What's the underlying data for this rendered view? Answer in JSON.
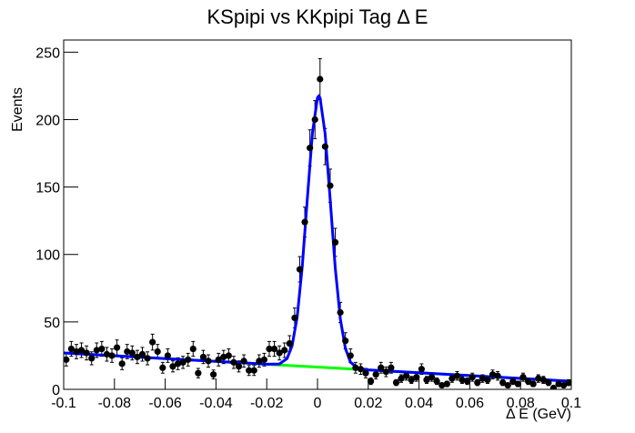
{
  "chart_data": {
    "type": "errorbar",
    "title": "KSpipi vs KKpipi Tag Δ E",
    "x_label": "Δ E (GeV)",
    "y_label": "Events",
    "xlim": [
      -0.1,
      0.1
    ],
    "ylim": [
      0,
      259
    ],
    "xticks": [
      -0.1,
      -0.08,
      -0.06,
      -0.04,
      -0.02,
      0,
      0.02,
      0.04,
      0.06,
      0.08,
      0.1
    ],
    "yticks": [
      0,
      50,
      100,
      150,
      200,
      250
    ],
    "points": {
      "color": "#000000",
      "x": [
        -0.099,
        -0.097,
        -0.095,
        -0.093,
        -0.091,
        -0.089,
        -0.087,
        -0.085,
        -0.083,
        -0.081,
        -0.079,
        -0.077,
        -0.075,
        -0.073,
        -0.071,
        -0.069,
        -0.067,
        -0.065,
        -0.063,
        -0.061,
        -0.059,
        -0.057,
        -0.055,
        -0.053,
        -0.051,
        -0.049,
        -0.047,
        -0.045,
        -0.043,
        -0.041,
        -0.039,
        -0.037,
        -0.035,
        -0.033,
        -0.031,
        -0.029,
        -0.027,
        -0.025,
        -0.023,
        -0.021,
        -0.019,
        -0.017,
        -0.015,
        -0.013,
        -0.011,
        -0.009,
        -0.007,
        -0.005,
        -0.003,
        -0.001,
        0.001,
        0.003,
        0.005,
        0.007,
        0.009,
        0.011,
        0.013,
        0.015,
        0.017,
        0.019,
        0.021,
        0.023,
        0.025,
        0.027,
        0.029,
        0.031,
        0.033,
        0.035,
        0.037,
        0.039,
        0.041,
        0.043,
        0.045,
        0.047,
        0.049,
        0.051,
        0.053,
        0.055,
        0.057,
        0.059,
        0.061,
        0.063,
        0.065,
        0.067,
        0.069,
        0.071,
        0.073,
        0.075,
        0.077,
        0.079,
        0.081,
        0.083,
        0.085,
        0.087,
        0.089,
        0.091,
        0.093,
        0.095,
        0.097,
        0.099
      ],
      "values": [
        22,
        30,
        28,
        29,
        27,
        23,
        29,
        30,
        26,
        25,
        31,
        19,
        28,
        27,
        24,
        26,
        23,
        35,
        28,
        16,
        25,
        17,
        19,
        20,
        22,
        30,
        12,
        24,
        21,
        11,
        22,
        24,
        25,
        20,
        17,
        21,
        14,
        14,
        21,
        22,
        30,
        30,
        27,
        29,
        34,
        53,
        89,
        124,
        179,
        200,
        230,
        180,
        151,
        109,
        57,
        36,
        25,
        16,
        15,
        12,
        6,
        11,
        16,
        13,
        16,
        5,
        8,
        10,
        7,
        9,
        15,
        7,
        9,
        6,
        3,
        4,
        8,
        10,
        7,
        6,
        9,
        5,
        8,
        7,
        11,
        10,
        5,
        3,
        6,
        4,
        9,
        6,
        4,
        8,
        7,
        5,
        1,
        4,
        3,
        5
      ],
      "errors": [
        4.7,
        5.5,
        5.3,
        5.4,
        5.2,
        4.8,
        5.4,
        5.5,
        5.1,
        5,
        5.6,
        4.4,
        5.3,
        5.2,
        4.9,
        5.1,
        4.8,
        5.9,
        5.3,
        4,
        5,
        4.1,
        4.4,
        4.5,
        4.7,
        5.5,
        3.5,
        4.9,
        4.6,
        3.3,
        4.7,
        4.9,
        5,
        4.5,
        4.1,
        4.6,
        3.7,
        3.7,
        4.6,
        4.7,
        5.5,
        5.5,
        5.2,
        5.4,
        5.8,
        7.3,
        9.4,
        11.1,
        13.4,
        14.1,
        15.2,
        13.4,
        12.3,
        10.4,
        7.5,
        6,
        5,
        4,
        3.9,
        3.5,
        2.4,
        3.3,
        4,
        3.6,
        4,
        2.2,
        2.8,
        3.2,
        2.6,
        3,
        3.9,
        2.6,
        3,
        2.4,
        1.7,
        2,
        2.8,
        3.2,
        2.6,
        2.4,
        3,
        2.2,
        2.8,
        2.6,
        3.3,
        3.2,
        2.2,
        1.7,
        2.4,
        2,
        3,
        2.4,
        2,
        2.8,
        2.6,
        2.2,
        1,
        2,
        1.7,
        2.2
      ]
    },
    "background": {
      "color": "#00ff00",
      "x": [
        -0.1,
        0.1
      ],
      "values": [
        27,
        6
      ]
    },
    "fit": {
      "color": "#0000ff",
      "x": [
        -0.1,
        -0.08,
        -0.06,
        -0.04,
        -0.03,
        -0.02,
        -0.015,
        -0.012,
        -0.01,
        -0.008,
        -0.006,
        -0.004,
        -0.002,
        0,
        0.0005,
        0.001,
        0.003,
        0.005,
        0.007,
        0.009,
        0.011,
        0.013,
        0.016,
        0.02,
        0.03,
        0.04,
        0.06,
        0.08,
        0.1
      ],
      "values": [
        27,
        24.9,
        22.8,
        20.7,
        19.7,
        18.6,
        18.8,
        22.8,
        32.4,
        53.8,
        91.2,
        141.5,
        190.1,
        216.3,
        217.4,
        216.2,
        189.6,
        140.6,
        89.9,
        52.1,
        30.3,
        20.1,
        15.5,
        14.4,
        13.35,
        12.3,
        10.2,
        8.1,
        6
      ]
    }
  }
}
